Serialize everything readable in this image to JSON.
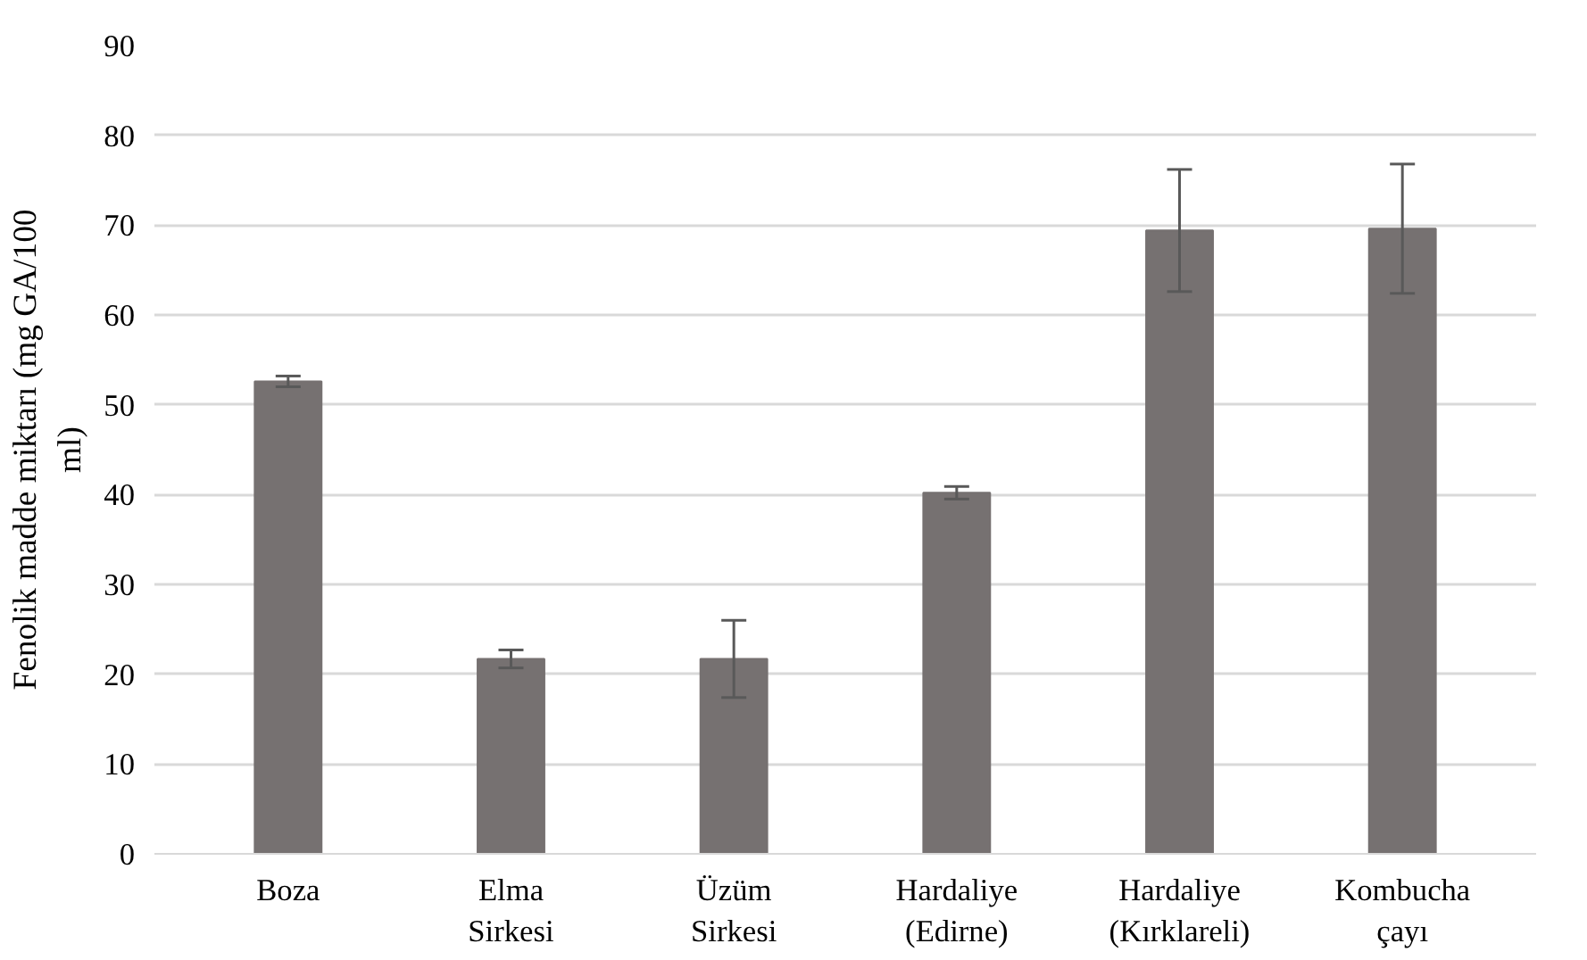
{
  "chart_data": {
    "type": "bar",
    "ylabel": "Fenolik madde miktarı (mg GA/100 ml)",
    "categories": [
      "Boza",
      "Elma Sirkesi",
      "Üzüm Sirkesi",
      "Hardaliye (Edirne)",
      "Hardaliye (Kırklareli)",
      "Kombucha çayı"
    ],
    "values": [
      52.6,
      21.7,
      21.7,
      40.2,
      69.4,
      69.6
    ],
    "errors": [
      0.6,
      1.0,
      4.3,
      0.7,
      6.8,
      7.2
    ],
    "color": "#767171",
    "ylim": [
      0,
      90
    ],
    "yticks": [
      0,
      10,
      20,
      30,
      40,
      50,
      60,
      70,
      80,
      90
    ],
    "grid": "y"
  }
}
